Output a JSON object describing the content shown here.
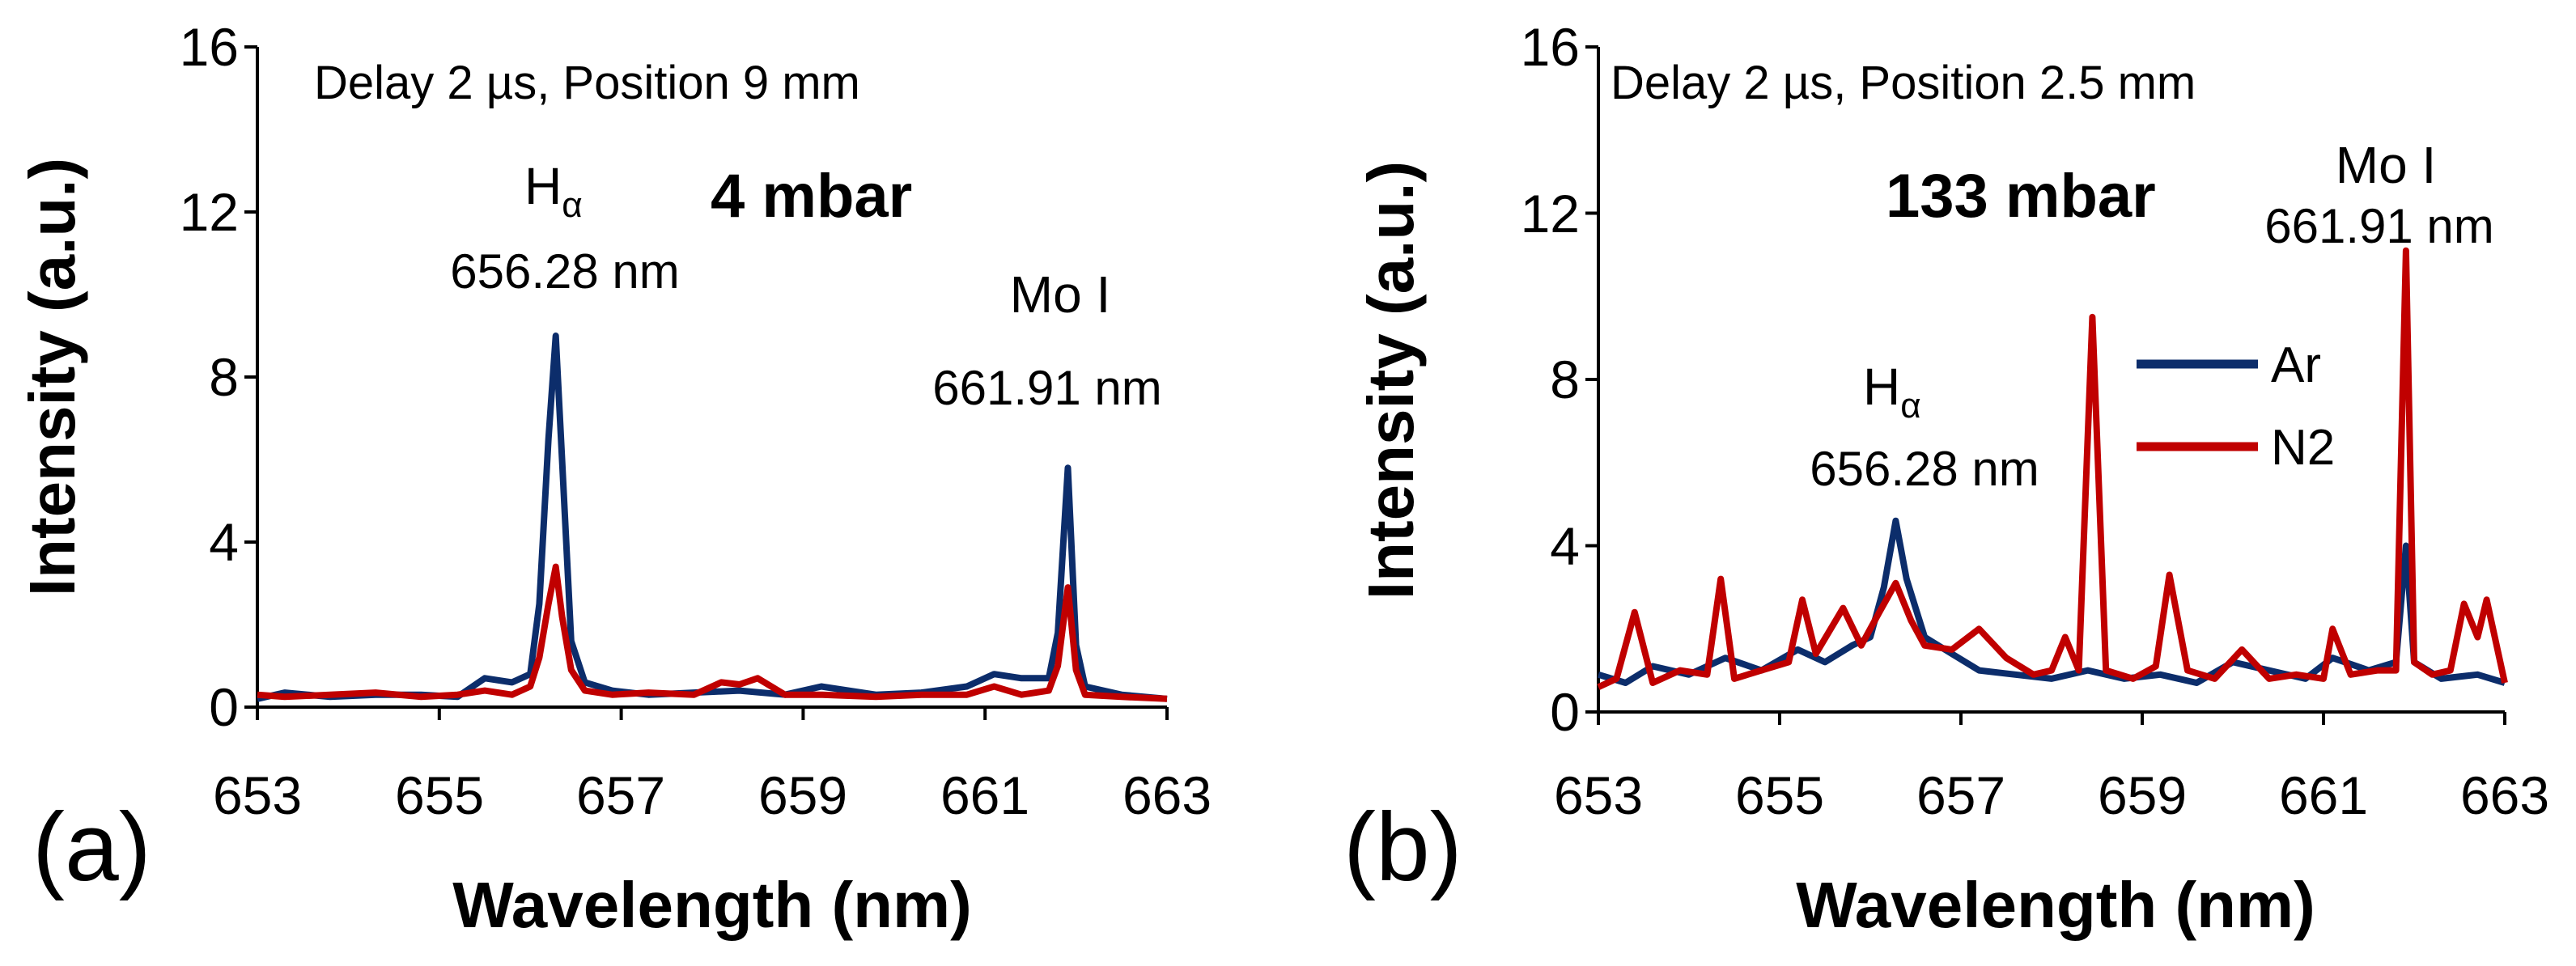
{
  "chart_data": [
    {
      "type": "line",
      "panel_label": "(a)",
      "note": "Delay 2 µs, Position 9 mm",
      "condition": "4 mbar",
      "xlabel": "Wavelength (nm)",
      "ylabel": "Intensity (a.u.)",
      "xlim": [
        653,
        663
      ],
      "ylim": [
        0,
        16
      ],
      "xticks": [
        "653",
        "655",
        "657",
        "659",
        "661",
        "663"
      ],
      "yticks": [
        "0",
        "4",
        "8",
        "12",
        "16"
      ],
      "annotations": [
        {
          "symbol": "H",
          "subscript": "α",
          "wavelength_label": "656.28 nm",
          "x": 656.28
        },
        {
          "symbol": "Mo I",
          "subscript": "",
          "wavelength_label": "661.91 nm",
          "x": 661.91
        }
      ],
      "series": [
        {
          "name": "Ar",
          "color": "#0c2d6b",
          "x": [
            653.0,
            653.3,
            653.8,
            654.3,
            654.8,
            655.2,
            655.5,
            655.8,
            656.0,
            656.1,
            656.2,
            656.28,
            656.35,
            656.45,
            656.6,
            656.9,
            657.3,
            657.8,
            658.3,
            658.8,
            659.2,
            659.8,
            660.3,
            660.8,
            661.1,
            661.4,
            661.7,
            661.8,
            661.91,
            662.0,
            662.1,
            662.5,
            663.0
          ],
          "values": [
            0.2,
            0.35,
            0.25,
            0.3,
            0.3,
            0.25,
            0.7,
            0.6,
            0.8,
            2.5,
            6.5,
            9.0,
            6.0,
            1.6,
            0.6,
            0.4,
            0.3,
            0.35,
            0.4,
            0.3,
            0.5,
            0.3,
            0.35,
            0.5,
            0.8,
            0.7,
            0.7,
            1.8,
            5.8,
            1.5,
            0.5,
            0.3,
            0.2
          ]
        },
        {
          "name": "N2",
          "color": "#c00000",
          "x": [
            653.0,
            653.3,
            653.8,
            654.3,
            654.8,
            655.2,
            655.5,
            655.8,
            656.0,
            656.1,
            656.2,
            656.28,
            656.35,
            656.45,
            656.6,
            656.9,
            657.3,
            657.8,
            658.1,
            658.3,
            658.5,
            658.8,
            659.2,
            659.8,
            660.3,
            660.8,
            661.1,
            661.4,
            661.7,
            661.8,
            661.91,
            662.0,
            662.1,
            662.5,
            663.0
          ],
          "values": [
            0.3,
            0.25,
            0.3,
            0.35,
            0.25,
            0.3,
            0.4,
            0.3,
            0.5,
            1.2,
            2.5,
            3.4,
            2.2,
            0.9,
            0.4,
            0.3,
            0.35,
            0.3,
            0.6,
            0.55,
            0.7,
            0.3,
            0.3,
            0.25,
            0.3,
            0.3,
            0.5,
            0.3,
            0.4,
            1.0,
            2.9,
            0.9,
            0.3,
            0.25,
            0.2
          ]
        }
      ]
    },
    {
      "type": "line",
      "panel_label": "(b)",
      "note": "Delay 2 µs, Position 2.5 mm",
      "condition": "133 mbar",
      "xlabel": "Wavelength (nm)",
      "ylabel": "Intensity (a.u.)",
      "xlim": [
        653,
        663
      ],
      "ylim": [
        0,
        16
      ],
      "xticks": [
        "653",
        "655",
        "657",
        "659",
        "661",
        "663"
      ],
      "yticks": [
        "0",
        "4",
        "8",
        "12",
        "16"
      ],
      "legend": [
        "Ar",
        "N2"
      ],
      "legend_position": "right",
      "annotations": [
        {
          "symbol": "H",
          "subscript": "α",
          "wavelength_label": "656.28 nm",
          "x": 656.28
        },
        {
          "symbol": "Mo I",
          "subscript": "",
          "wavelength_label": "661.91 nm",
          "x": 661.91
        }
      ],
      "series": [
        {
          "name": "Ar",
          "color": "#0c2d6b",
          "x": [
            653.0,
            653.3,
            653.6,
            654.0,
            654.4,
            654.8,
            655.2,
            655.5,
            655.8,
            656.0,
            656.15,
            656.28,
            656.4,
            656.6,
            656.9,
            657.2,
            657.6,
            658.0,
            658.4,
            658.8,
            659.2,
            659.6,
            660.0,
            660.4,
            660.8,
            661.1,
            661.5,
            661.8,
            661.91,
            662.0,
            662.3,
            662.7,
            663.0
          ],
          "values": [
            0.9,
            0.7,
            1.1,
            0.9,
            1.3,
            1.0,
            1.5,
            1.2,
            1.6,
            1.8,
            3.0,
            4.6,
            3.2,
            1.8,
            1.4,
            1.0,
            0.9,
            0.8,
            1.0,
            0.8,
            0.9,
            0.7,
            1.2,
            1.0,
            0.8,
            1.3,
            1.0,
            1.2,
            4.0,
            1.2,
            0.8,
            0.9,
            0.7
          ]
        },
        {
          "name": "N2",
          "color": "#c00000",
          "x": [
            653.0,
            653.2,
            653.4,
            653.6,
            653.9,
            654.2,
            654.35,
            654.5,
            654.8,
            655.1,
            655.25,
            655.4,
            655.7,
            655.9,
            656.1,
            656.28,
            656.45,
            656.6,
            656.9,
            657.2,
            657.5,
            657.8,
            658.0,
            658.15,
            658.3,
            658.45,
            658.6,
            658.9,
            659.15,
            659.3,
            659.5,
            659.8,
            660.1,
            660.4,
            660.7,
            661.0,
            661.1,
            661.3,
            661.6,
            661.8,
            661.91,
            662.0,
            662.2,
            662.4,
            662.55,
            662.7,
            662.8,
            663.0
          ],
          "values": [
            0.6,
            0.8,
            2.4,
            0.7,
            1.0,
            0.9,
            3.2,
            0.8,
            1.0,
            1.2,
            2.7,
            1.4,
            2.5,
            1.6,
            2.4,
            3.1,
            2.2,
            1.6,
            1.5,
            2.0,
            1.3,
            0.9,
            1.0,
            1.8,
            1.0,
            9.5,
            1.0,
            0.8,
            1.1,
            3.3,
            1.0,
            0.8,
            1.5,
            0.8,
            0.9,
            0.8,
            2.0,
            0.9,
            1.0,
            1.0,
            11.1,
            1.2,
            0.9,
            1.0,
            2.6,
            1.8,
            2.7,
            0.7
          ]
        }
      ]
    }
  ]
}
